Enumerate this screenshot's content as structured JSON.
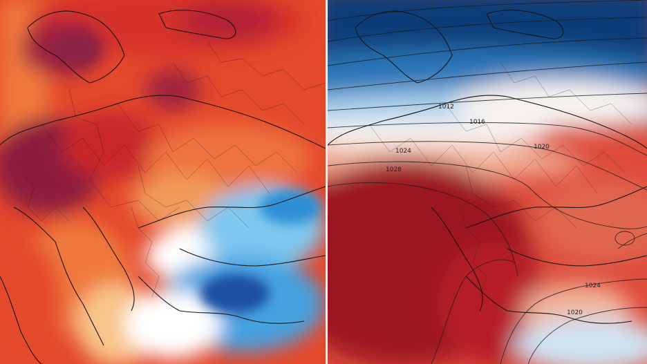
{
  "left_map": {
    "kind": "temperature-anomaly",
    "palette": {
      "deep": "#8c1d3c",
      "hot": "#c8262a",
      "warm": "#e4482b",
      "mild": "#f07a3c",
      "light": "#f6a86a",
      "neutral": "#ffffff",
      "cool": "#7fc8ef",
      "cold": "#2f8fd6",
      "very_cold": "#1a4fa3"
    }
  },
  "right_map": {
    "kind": "sea-level-pressure",
    "isobar_labels": [
      "1012",
      "1016",
      "1020",
      "1024",
      "1028",
      "1024",
      "1020"
    ],
    "palette": {
      "deep_blue": "#0f3e78",
      "blue": "#2c76b8",
      "pale_blue": "#a9d0ec",
      "white": "#f7f3f0",
      "pale_red": "#f2b39a",
      "red": "#de4b3a",
      "deep_red": "#9c1420"
    }
  }
}
